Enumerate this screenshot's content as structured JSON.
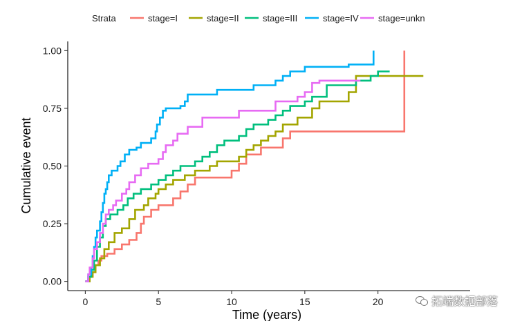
{
  "chart_data": {
    "type": "line",
    "xlabel": "Time (years)",
    "ylabel": "Cumulative event",
    "xlim": [
      -1.2,
      26.3
    ],
    "ylim": [
      -0.04,
      1.04
    ],
    "x_ticks": [
      0,
      5,
      10,
      15,
      20
    ],
    "x_tick_labels": [
      "0",
      "5",
      "10",
      "15",
      "20"
    ],
    "y_ticks": [
      0,
      0.25,
      0.5,
      0.75,
      1
    ],
    "y_tick_labels": [
      "0.00",
      "0.25",
      "0.50",
      "0.75",
      "1.00"
    ],
    "grid": false,
    "legend": {
      "title": "Strata",
      "position": "top"
    },
    "series": [
      {
        "name": "stage=I",
        "color": "#F8766D",
        "points": [
          [
            0,
            0
          ],
          [
            0.3,
            0.02
          ],
          [
            0.5,
            0.04
          ],
          [
            0.7,
            0.07
          ],
          [
            0.9,
            0.09
          ],
          [
            1.1,
            0.11
          ],
          [
            1.5,
            0.12
          ],
          [
            2.0,
            0.14
          ],
          [
            2.5,
            0.16
          ],
          [
            3.0,
            0.18
          ],
          [
            3.5,
            0.21
          ],
          [
            3.8,
            0.25
          ],
          [
            4.0,
            0.28
          ],
          [
            4.5,
            0.31
          ],
          [
            5.0,
            0.33
          ],
          [
            6.0,
            0.36
          ],
          [
            6.5,
            0.39
          ],
          [
            7.0,
            0.42
          ],
          [
            7.5,
            0.45
          ],
          [
            10.0,
            0.48
          ],
          [
            10.5,
            0.51
          ],
          [
            11.0,
            0.55
          ],
          [
            12.0,
            0.58
          ],
          [
            13.5,
            0.62
          ],
          [
            14.0,
            0.65
          ],
          [
            21.8,
            0.65
          ],
          [
            21.8,
            1.0
          ]
        ]
      },
      {
        "name": "stage=II",
        "color": "#A3A500",
        "points": [
          [
            0,
            0
          ],
          [
            0.3,
            0.02
          ],
          [
            0.5,
            0.04
          ],
          [
            0.7,
            0.07
          ],
          [
            1.0,
            0.1
          ],
          [
            1.3,
            0.14
          ],
          [
            1.6,
            0.17
          ],
          [
            2.0,
            0.21
          ],
          [
            2.5,
            0.23
          ],
          [
            3.0,
            0.27
          ],
          [
            3.4,
            0.31
          ],
          [
            4.0,
            0.33
          ],
          [
            4.3,
            0.36
          ],
          [
            4.8,
            0.38
          ],
          [
            5.0,
            0.4
          ],
          [
            5.5,
            0.42
          ],
          [
            6.0,
            0.44
          ],
          [
            6.8,
            0.46
          ],
          [
            7.5,
            0.48
          ],
          [
            8.5,
            0.5
          ],
          [
            9.0,
            0.52
          ],
          [
            10.5,
            0.54
          ],
          [
            11.0,
            0.57
          ],
          [
            11.5,
            0.59
          ],
          [
            12.0,
            0.61
          ],
          [
            12.5,
            0.63
          ],
          [
            13.0,
            0.65
          ],
          [
            13.5,
            0.68
          ],
          [
            14.5,
            0.71
          ],
          [
            15.5,
            0.75
          ],
          [
            16.0,
            0.78
          ],
          [
            18.0,
            0.82
          ],
          [
            18.5,
            0.89
          ],
          [
            23.1,
            0.89
          ]
        ]
      },
      {
        "name": "stage=III",
        "color": "#00BF7D",
        "points": [
          [
            0,
            0
          ],
          [
            0.2,
            0.02
          ],
          [
            0.4,
            0.05
          ],
          [
            0.6,
            0.09
          ],
          [
            0.8,
            0.15
          ],
          [
            1.0,
            0.19
          ],
          [
            1.2,
            0.24
          ],
          [
            1.4,
            0.27
          ],
          [
            1.7,
            0.29
          ],
          [
            2.2,
            0.31
          ],
          [
            2.6,
            0.33
          ],
          [
            2.9,
            0.36
          ],
          [
            3.3,
            0.38
          ],
          [
            3.8,
            0.4
          ],
          [
            4.5,
            0.42
          ],
          [
            5.0,
            0.44
          ],
          [
            5.5,
            0.46
          ],
          [
            6.0,
            0.48
          ],
          [
            6.5,
            0.5
          ],
          [
            7.5,
            0.52
          ],
          [
            8.0,
            0.54
          ],
          [
            8.5,
            0.56
          ],
          [
            9.0,
            0.59
          ],
          [
            9.5,
            0.61
          ],
          [
            10.5,
            0.63
          ],
          [
            11.0,
            0.66
          ],
          [
            11.5,
            0.68
          ],
          [
            12.5,
            0.7
          ],
          [
            13.0,
            0.72
          ],
          [
            13.5,
            0.74
          ],
          [
            14.0,
            0.76
          ],
          [
            15.0,
            0.78
          ],
          [
            15.5,
            0.8
          ],
          [
            16.5,
            0.85
          ],
          [
            18.5,
            0.87
          ],
          [
            19.5,
            0.89
          ],
          [
            20.0,
            0.91
          ],
          [
            20.8,
            0.91
          ]
        ]
      },
      {
        "name": "stage=IV",
        "color": "#00B0F6",
        "points": [
          [
            0,
            0
          ],
          [
            0.2,
            0.03
          ],
          [
            0.4,
            0.06
          ],
          [
            0.5,
            0.11
          ],
          [
            0.6,
            0.15
          ],
          [
            0.7,
            0.19
          ],
          [
            0.8,
            0.22
          ],
          [
            1.0,
            0.26
          ],
          [
            1.1,
            0.3
          ],
          [
            1.2,
            0.34
          ],
          [
            1.3,
            0.38
          ],
          [
            1.4,
            0.4
          ],
          [
            1.5,
            0.43
          ],
          [
            1.6,
            0.46
          ],
          [
            1.8,
            0.48
          ],
          [
            2.2,
            0.5
          ],
          [
            2.4,
            0.52
          ],
          [
            2.7,
            0.55
          ],
          [
            3.0,
            0.57
          ],
          [
            3.5,
            0.58
          ],
          [
            3.8,
            0.6
          ],
          [
            4.5,
            0.62
          ],
          [
            4.8,
            0.65
          ],
          [
            4.9,
            0.68
          ],
          [
            5.1,
            0.71
          ],
          [
            5.3,
            0.74
          ],
          [
            5.5,
            0.75
          ],
          [
            6.5,
            0.76
          ],
          [
            6.8,
            0.78
          ],
          [
            7.0,
            0.81
          ],
          [
            9.0,
            0.83
          ],
          [
            11.5,
            0.85
          ],
          [
            13.0,
            0.87
          ],
          [
            13.5,
            0.89
          ],
          [
            14.0,
            0.91
          ],
          [
            15.0,
            0.93
          ],
          [
            18.0,
            0.94
          ],
          [
            19.7,
            0.94
          ],
          [
            19.7,
            1.0
          ]
        ]
      },
      {
        "name": "stage=unkn",
        "color": "#E76BF3",
        "points": [
          [
            0,
            0
          ],
          [
            0.2,
            0.03
          ],
          [
            0.3,
            0.06
          ],
          [
            0.5,
            0.1
          ],
          [
            0.6,
            0.14
          ],
          [
            0.8,
            0.17
          ],
          [
            1.0,
            0.21
          ],
          [
            1.2,
            0.25
          ],
          [
            1.4,
            0.29
          ],
          [
            1.6,
            0.31
          ],
          [
            1.9,
            0.33
          ],
          [
            2.1,
            0.35
          ],
          [
            2.5,
            0.38
          ],
          [
            2.8,
            0.4
          ],
          [
            3.0,
            0.43
          ],
          [
            3.4,
            0.46
          ],
          [
            3.8,
            0.49
          ],
          [
            4.3,
            0.51
          ],
          [
            5.0,
            0.53
          ],
          [
            5.3,
            0.56
          ],
          [
            5.5,
            0.59
          ],
          [
            6.0,
            0.61
          ],
          [
            6.3,
            0.64
          ],
          [
            7.0,
            0.67
          ],
          [
            8.0,
            0.71
          ],
          [
            10.5,
            0.74
          ],
          [
            13.0,
            0.78
          ],
          [
            14.5,
            0.8
          ],
          [
            15.0,
            0.82
          ],
          [
            15.5,
            0.86
          ],
          [
            16.0,
            0.87
          ],
          [
            18.8,
            0.87
          ]
        ]
      }
    ]
  },
  "watermark": {
    "text": "拓端数据部落",
    "icon": "wechat-icon"
  }
}
